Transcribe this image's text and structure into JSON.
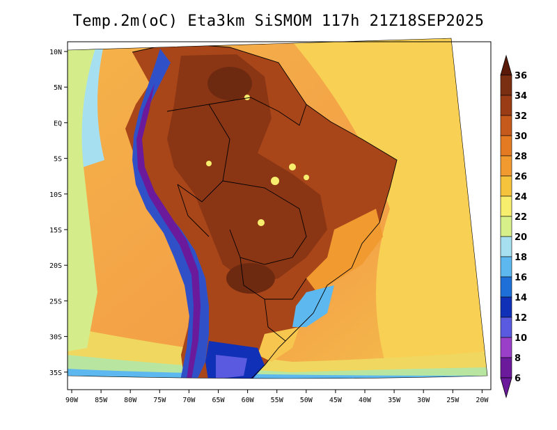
{
  "title": "Temp.2m(oC) Eta3km SiSMOM 117h 21Z18SEP2025",
  "latitude_labels": [
    "10N",
    "5N",
    "EQ",
    "5S",
    "10S",
    "15S",
    "20S",
    "25S",
    "30S",
    "35S"
  ],
  "longitude_labels": [
    "90W",
    "85W",
    "80W",
    "75W",
    "70W",
    "65W",
    "60W",
    "55W",
    "50W",
    "45W",
    "40W",
    "35W",
    "30W",
    "25W",
    "20W"
  ],
  "colorbar": {
    "labels": [
      "36",
      "34",
      "32",
      "30",
      "28",
      "26",
      "24",
      "22",
      "20",
      "18",
      "16",
      "14",
      "12",
      "10",
      "8",
      "6"
    ],
    "colors": [
      "#5a1a0a",
      "#7a2e12",
      "#9a3c16",
      "#c55a1c",
      "#e47a22",
      "#f09a30",
      "#f5c43c",
      "#f7ee6e",
      "#d8f08a",
      "#a6e0f0",
      "#5cb8ee",
      "#1f6fd8",
      "#1030b8",
      "#5a5ae0",
      "#9a40c8",
      "#6a1a9a"
    ]
  },
  "map_colors": {
    "ocean_warm": "#f3a84a",
    "ocean_mild": "#f6c64e",
    "ocean_cool": "#b8e6a0",
    "land_hot": "#a8461a",
    "land_very_hot": "#7a3012",
    "andes_cold": "#3050c8",
    "south_cold": "#2040c0"
  }
}
